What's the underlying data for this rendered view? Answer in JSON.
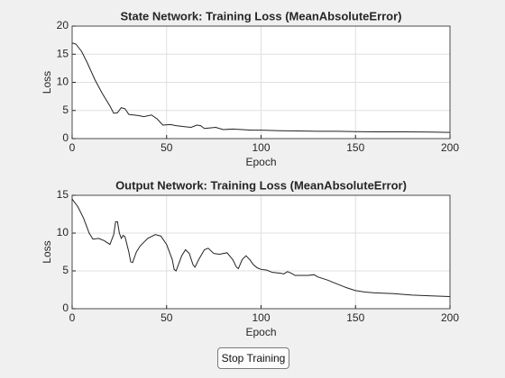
{
  "chart_data": [
    {
      "type": "line",
      "title": "State Network: Training Loss (MeanAbsoluteError)",
      "xlabel": "Epoch",
      "ylabel": "Loss",
      "x": [
        0,
        2,
        5,
        8,
        12,
        16,
        20,
        22,
        24,
        26,
        28,
        30,
        35,
        38,
        42,
        45,
        48,
        52,
        55,
        60,
        63,
        66,
        68,
        70,
        73,
        76,
        80,
        85,
        90,
        95,
        100,
        110,
        120,
        130,
        140,
        150,
        160,
        175,
        190,
        200
      ],
      "values": [
        17,
        16.8,
        15.5,
        13.5,
        10.5,
        8,
        5.8,
        4.5,
        4.6,
        5.5,
        5.3,
        4.3,
        4.1,
        3.9,
        4.2,
        3.5,
        2.4,
        2.5,
        2.3,
        2.1,
        2.0,
        2.4,
        2.3,
        1.8,
        1.9,
        2.0,
        1.6,
        1.7,
        1.6,
        1.5,
        1.5,
        1.4,
        1.35,
        1.3,
        1.3,
        1.25,
        1.2,
        1.2,
        1.15,
        1.1
      ],
      "color": "#222222",
      "xlim": [
        0,
        200
      ],
      "xticks": [
        0,
        50,
        100,
        150,
        200
      ],
      "ylim": [
        0,
        20
      ],
      "yticks": [
        0,
        5,
        10,
        15,
        20
      ],
      "grid": true
    },
    {
      "type": "line",
      "title": "Output Network: Training Loss (MeanAbsoluteError)",
      "xlabel": "Epoch",
      "ylabel": "Loss",
      "x": [
        0,
        3,
        6,
        9,
        11,
        14,
        17,
        20,
        22,
        23,
        24,
        25,
        26,
        27,
        28,
        30,
        31,
        32,
        34,
        36,
        40,
        44,
        47,
        50,
        53,
        54,
        55,
        58,
        60,
        62,
        64,
        65,
        67,
        70,
        72,
        75,
        78,
        82,
        85,
        87,
        88,
        90,
        92,
        94,
        96,
        98,
        100,
        103,
        106,
        110,
        112,
        114,
        116,
        118,
        120,
        125,
        128,
        130,
        135,
        140,
        145,
        150,
        155,
        160,
        170,
        180,
        190,
        200
      ],
      "values": [
        14.5,
        13.5,
        12,
        10,
        9.2,
        9.3,
        9,
        8.5,
        9.8,
        11.5,
        11.5,
        10,
        9.3,
        9.7,
        9.5,
        7.5,
        6.2,
        6.1,
        7.5,
        8.3,
        9.3,
        9.8,
        9.6,
        8.5,
        6.5,
        5.2,
        5.0,
        7,
        7.8,
        7.3,
        5.8,
        5.5,
        6.5,
        7.8,
        8.0,
        7.3,
        7.2,
        7.4,
        6.5,
        5.5,
        5.3,
        6.5,
        7.0,
        6.5,
        5.8,
        5.4,
        5.2,
        5.1,
        4.8,
        4.7,
        4.6,
        4.9,
        4.7,
        4.4,
        4.4,
        4.4,
        4.5,
        4.2,
        3.8,
        3.3,
        2.8,
        2.4,
        2.2,
        2.1,
        2.0,
        1.8,
        1.7,
        1.6
      ],
      "color": "#222222",
      "xlim": [
        0,
        200
      ],
      "xticks": [
        0,
        50,
        100,
        150,
        200
      ],
      "ylim": [
        0,
        15
      ],
      "yticks": [
        0,
        5,
        10,
        15
      ],
      "grid": true
    }
  ],
  "button": {
    "label": "Stop Training"
  }
}
